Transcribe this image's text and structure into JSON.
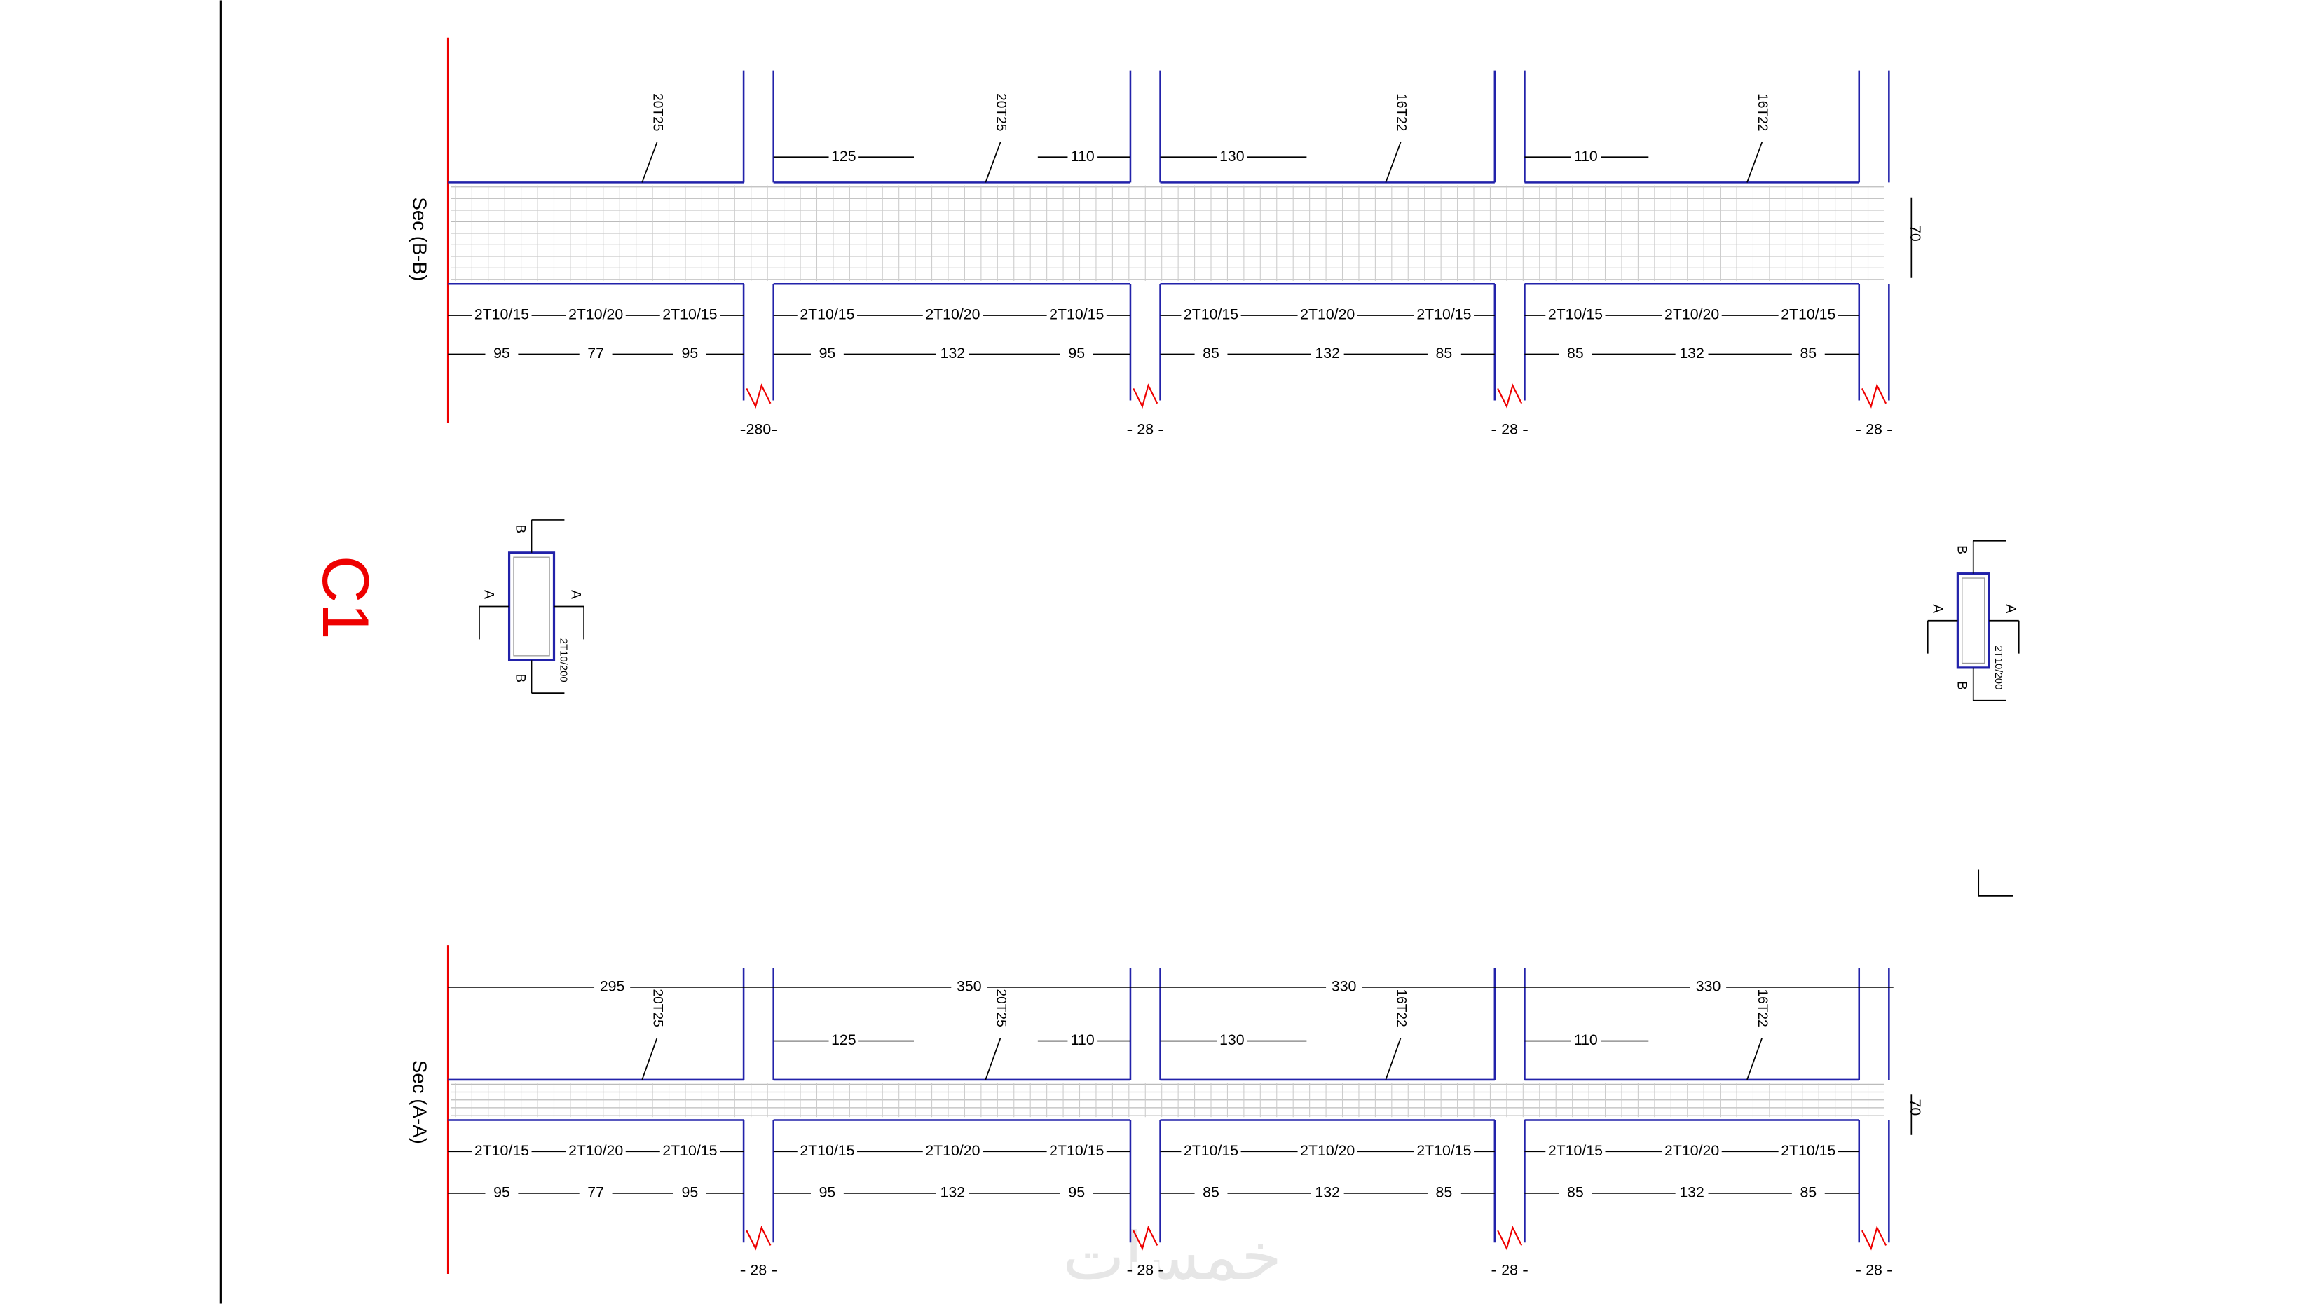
{
  "title": "C1",
  "watermark": "خمسات",
  "sections": [
    {
      "label": "Sec (B-B)",
      "top_bars": [
        "20T25",
        "20T25",
        "16T22",
        "16T22"
      ],
      "top_dims": [
        "125",
        "110",
        "130",
        "110"
      ],
      "stirrups": [
        [
          "2T10/15",
          "2T10/20",
          "2T10/15"
        ],
        [
          "2T10/15",
          "2T10/20",
          "2T10/15"
        ],
        [
          "2T10/15",
          "2T10/20",
          "2T10/15"
        ],
        [
          "2T10/15",
          "2T10/20",
          "2T10/15"
        ]
      ],
      "lengths": [
        [
          "95",
          "77",
          "95"
        ],
        [
          "95",
          "132",
          "95"
        ],
        [
          "85",
          "132",
          "85"
        ],
        [
          "85",
          "132",
          "85"
        ]
      ],
      "column_dims": [
        "280",
        "28",
        "28",
        "28"
      ],
      "depth": "70"
    },
    {
      "label": "Sec (A-A)",
      "span_lengths": [
        "295",
        "350",
        "330",
        "330"
      ],
      "top_bars": [
        "20T25",
        "20T25",
        "16T22",
        "16T22"
      ],
      "top_dims": [
        "125",
        "110",
        "130",
        "110"
      ],
      "stirrups": [
        [
          "2T10/15",
          "2T10/20",
          "2T10/15"
        ],
        [
          "2T10/15",
          "2T10/20",
          "2T10/15"
        ],
        [
          "2T10/15",
          "2T10/20",
          "2T10/15"
        ],
        [
          "2T10/15",
          "2T10/20",
          "2T10/15"
        ]
      ],
      "lengths": [
        [
          "95",
          "77",
          "95"
        ],
        [
          "95",
          "132",
          "95"
        ],
        [
          "85",
          "132",
          "85"
        ],
        [
          "85",
          "132",
          "85"
        ]
      ],
      "column_dims": [
        "28",
        "28",
        "28",
        "28"
      ],
      "depth": "70"
    }
  ],
  "key_sections": [
    {
      "cut_a": "A",
      "cut_b": "B",
      "rebar": "2T10/200"
    },
    {
      "cut_a": "A",
      "cut_b": "B",
      "rebar": "2T10/200"
    }
  ]
}
